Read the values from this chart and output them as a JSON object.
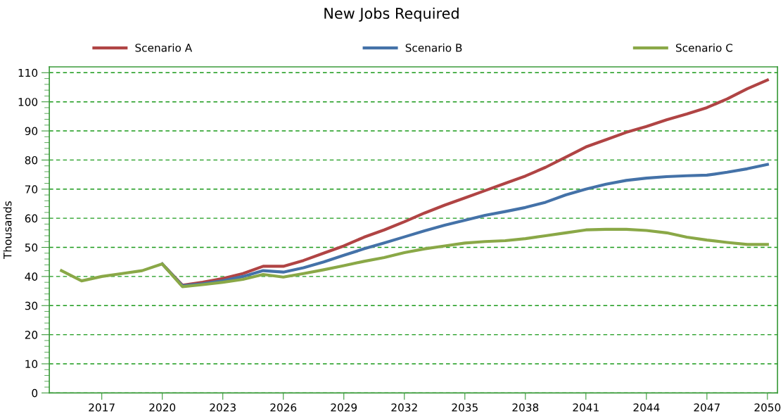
{
  "chart_data": {
    "type": "line",
    "title": "New Jobs Required",
    "ylabel": "Thousands",
    "x": [
      2015,
      2016,
      2017,
      2018,
      2019,
      2020,
      2021,
      2022,
      2023,
      2024,
      2025,
      2026,
      2027,
      2028,
      2029,
      2030,
      2031,
      2032,
      2033,
      2034,
      2035,
      2036,
      2037,
      2038,
      2039,
      2040,
      2041,
      2042,
      2043,
      2044,
      2045,
      2046,
      2047,
      2048,
      2049,
      2050
    ],
    "series": [
      {
        "name": "Scenario A",
        "color": "#b04444",
        "values": [
          null,
          null,
          null,
          null,
          null,
          44.3,
          37,
          38,
          39.3,
          41,
          43.5,
          43.5,
          45.5,
          48,
          50.5,
          53.5,
          56,
          58.8,
          61.8,
          64.5,
          67,
          69.5,
          72,
          74.5,
          77.5,
          81,
          84.5,
          87,
          89.5,
          91.5,
          93.8,
          95.8,
          98,
          101,
          104.5,
          107.5
        ]
      },
      {
        "name": "Scenario B",
        "color": "#4472a8",
        "values": [
          null,
          null,
          null,
          null,
          null,
          44.3,
          36.8,
          37.5,
          38.5,
          40,
          42,
          41.5,
          43,
          45,
          47.3,
          49.5,
          51.5,
          53.6,
          55.7,
          57.6,
          59.3,
          61,
          62.3,
          63.7,
          65.5,
          68,
          70,
          71.7,
          73,
          73.8,
          74.3,
          74.6,
          74.8,
          75.8,
          77,
          78.5
        ]
      },
      {
        "name": "Scenario C",
        "color": "#8aa847",
        "values": [
          42,
          38.5,
          40,
          41,
          42,
          44.3,
          36.5,
          37.2,
          38,
          39,
          40.7,
          39.8,
          41,
          42.3,
          43.7,
          45.2,
          46.5,
          48.2,
          49.5,
          50.5,
          51.5,
          52,
          52.3,
          53,
          54,
          55,
          56,
          56.2,
          56.2,
          55.8,
          55,
          53.5,
          52.5,
          51.7,
          51,
          51
        ]
      }
    ],
    "xlim": [
      2014.4,
      2050.5
    ],
    "xticks": [
      2017,
      2020,
      2023,
      2026,
      2029,
      2032,
      2035,
      2038,
      2041,
      2044,
      2047,
      2050
    ],
    "ylim": [
      0,
      112
    ],
    "yticks": [
      0,
      {
        "value": 2,
        "label": null
      },
      {
        "value": 4,
        "label": null
      },
      {
        "value": 6,
        "label": null
      },
      {
        "value": 8,
        "label": null
      },
      10,
      {
        "value": 12,
        "label": null
      },
      {
        "value": 14,
        "label": null
      },
      {
        "value": 16,
        "label": null
      },
      {
        "value": 18,
        "label": null
      },
      20,
      {
        "value": 22,
        "label": null
      },
      {
        "value": 24,
        "label": null
      },
      {
        "value": 26,
        "label": null
      },
      {
        "value": 28,
        "label": null
      },
      30,
      {
        "value": 32,
        "label": null
      },
      {
        "value": 34,
        "label": null
      },
      {
        "value": 36,
        "label": null
      },
      {
        "value": 38,
        "label": null
      },
      40,
      {
        "value": 42,
        "label": null
      },
      {
        "value": 44,
        "label": null
      },
      {
        "value": 46,
        "label": null
      },
      {
        "value": 48,
        "label": null
      },
      50,
      {
        "value": 52,
        "label": null
      },
      {
        "value": 54,
        "label": null
      },
      {
        "value": 56,
        "label": null
      },
      {
        "value": 58,
        "label": null
      },
      60,
      {
        "value": 62,
        "label": null
      },
      {
        "value": 64,
        "label": null
      },
      {
        "value": 66,
        "label": null
      },
      {
        "value": 68,
        "label": null
      },
      70,
      {
        "value": 72,
        "label": null
      },
      {
        "value": 74,
        "label": null
      },
      {
        "value": 76,
        "label": null
      },
      {
        "value": 78,
        "label": null
      },
      80,
      {
        "value": 82,
        "label": null
      },
      {
        "value": 84,
        "label": null
      },
      {
        "value": 86,
        "label": null
      },
      {
        "value": 88,
        "label": null
      },
      90,
      {
        "value": 92,
        "label": null
      },
      {
        "value": 94,
        "label": null
      },
      {
        "value": 96,
        "label": null
      },
      {
        "value": 98,
        "label": null
      },
      100,
      {
        "value": 102,
        "label": null
      },
      {
        "value": 104,
        "label": null
      },
      {
        "value": 106,
        "label": null
      },
      {
        "value": 108,
        "label": null
      },
      110
    ],
    "grid": "y",
    "legend": "top",
    "marker": "none",
    "line_style": "solid"
  }
}
